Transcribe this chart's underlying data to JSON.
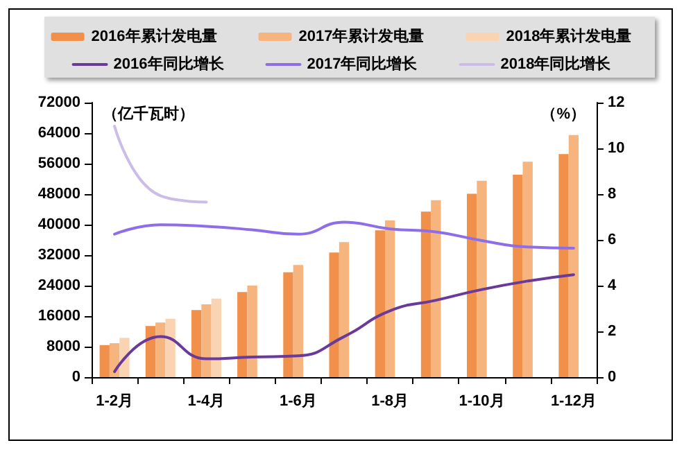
{
  "chart_data": {
    "type": "bar",
    "ylabel": "（亿千瓦时）",
    "y2label": "（%）",
    "categories": [
      "1-2月",
      null,
      "1-4月",
      null,
      "1-6月",
      null,
      "1-8月",
      null,
      "1-10月",
      null,
      "1-12月"
    ],
    "series": [
      {
        "name": "2016年累计发电量",
        "color": "#f0904a",
        "values": [
          8400,
          13400,
          17600,
          22300,
          27500,
          32700,
          38500,
          43400,
          48100,
          53100,
          58500
        ]
      },
      {
        "name": "2017年累计发电量",
        "color": "#f6b47e",
        "values": [
          8900,
          14300,
          19100,
          24000,
          29400,
          35400,
          41100,
          46400,
          51500,
          56500,
          63500
        ]
      },
      {
        "name": "2018年累计发电量",
        "color": "#f9d3b2",
        "values": [
          10300,
          15300,
          20600,
          null,
          null,
          null,
          null,
          null,
          null,
          null,
          null
        ]
      },
      {
        "name": "2016年同比增长",
        "type": "line",
        "axis": "y2",
        "color": "#6a3a9a",
        "values": [
          0.24,
          1.77,
          0.8,
          0.88,
          0.93,
          1.77,
          2.9,
          3.36,
          3.83,
          4.2,
          4.48
        ]
      },
      {
        "name": "2017年同比增长",
        "type": "line",
        "axis": "y2",
        "color": "#8e6ee8",
        "values": [
          6.25,
          6.66,
          6.59,
          6.44,
          6.25,
          6.77,
          6.48,
          6.35,
          5.97,
          5.69,
          5.64
        ]
      },
      {
        "name": "2018年同比增长",
        "type": "line",
        "axis": "y2",
        "color": "#cbbde8",
        "values": [
          10.97,
          7.93,
          7.65,
          null,
          null,
          null,
          null,
          null,
          null,
          null,
          null
        ]
      }
    ],
    "ylim": [
      0,
      72000
    ],
    "yticks": [
      0,
      8000,
      16000,
      24000,
      32000,
      40000,
      48000,
      56000,
      64000,
      72000
    ],
    "y2lim": [
      0,
      12
    ],
    "y2ticks": [
      0,
      2,
      4,
      6,
      8,
      10,
      12
    ],
    "grid": false,
    "legend": "top",
    "marker": "none",
    "line_style": "solid"
  }
}
